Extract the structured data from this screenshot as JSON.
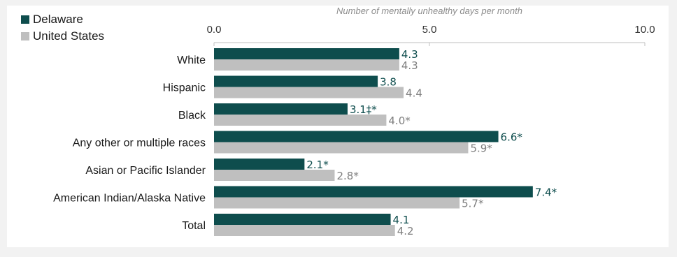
{
  "chart_data": {
    "type": "bar",
    "orientation": "horizontal",
    "title": "",
    "xlabel": "Number of mentally unhealthy days per month",
    "xlim": [
      0,
      10
    ],
    "xticks": [
      0,
      5,
      10
    ],
    "xtick_labels": [
      "0.0",
      "5.0",
      "10.0"
    ],
    "grid": false,
    "legend_position": "top-left",
    "categories": [
      "White",
      "Hispanic",
      "Black",
      "Any other or multiple races",
      "Asian or Pacific Islander",
      "American Indian/Alaska Native",
      "Total"
    ],
    "series": [
      {
        "name": "Delaware",
        "color": "#0e4d4d",
        "values": [
          4.3,
          3.8,
          3.1,
          6.6,
          2.1,
          7.4,
          4.1
        ],
        "labels": [
          "4.3",
          "3.8",
          "3.1‡*",
          "6.6*",
          "2.1*",
          "7.4*",
          "4.1"
        ]
      },
      {
        "name": "United States",
        "color": "#bfbfbf",
        "values": [
          4.3,
          4.4,
          4.0,
          5.9,
          2.8,
          5.7,
          4.2
        ],
        "labels": [
          "4.3",
          "4.4",
          "4.0*",
          "5.9*",
          "2.8*",
          "5.7*",
          "4.2"
        ]
      }
    ]
  },
  "label_colors": {
    "Delaware": "#0e4d4d",
    "United States": "#7f7f7f"
  }
}
